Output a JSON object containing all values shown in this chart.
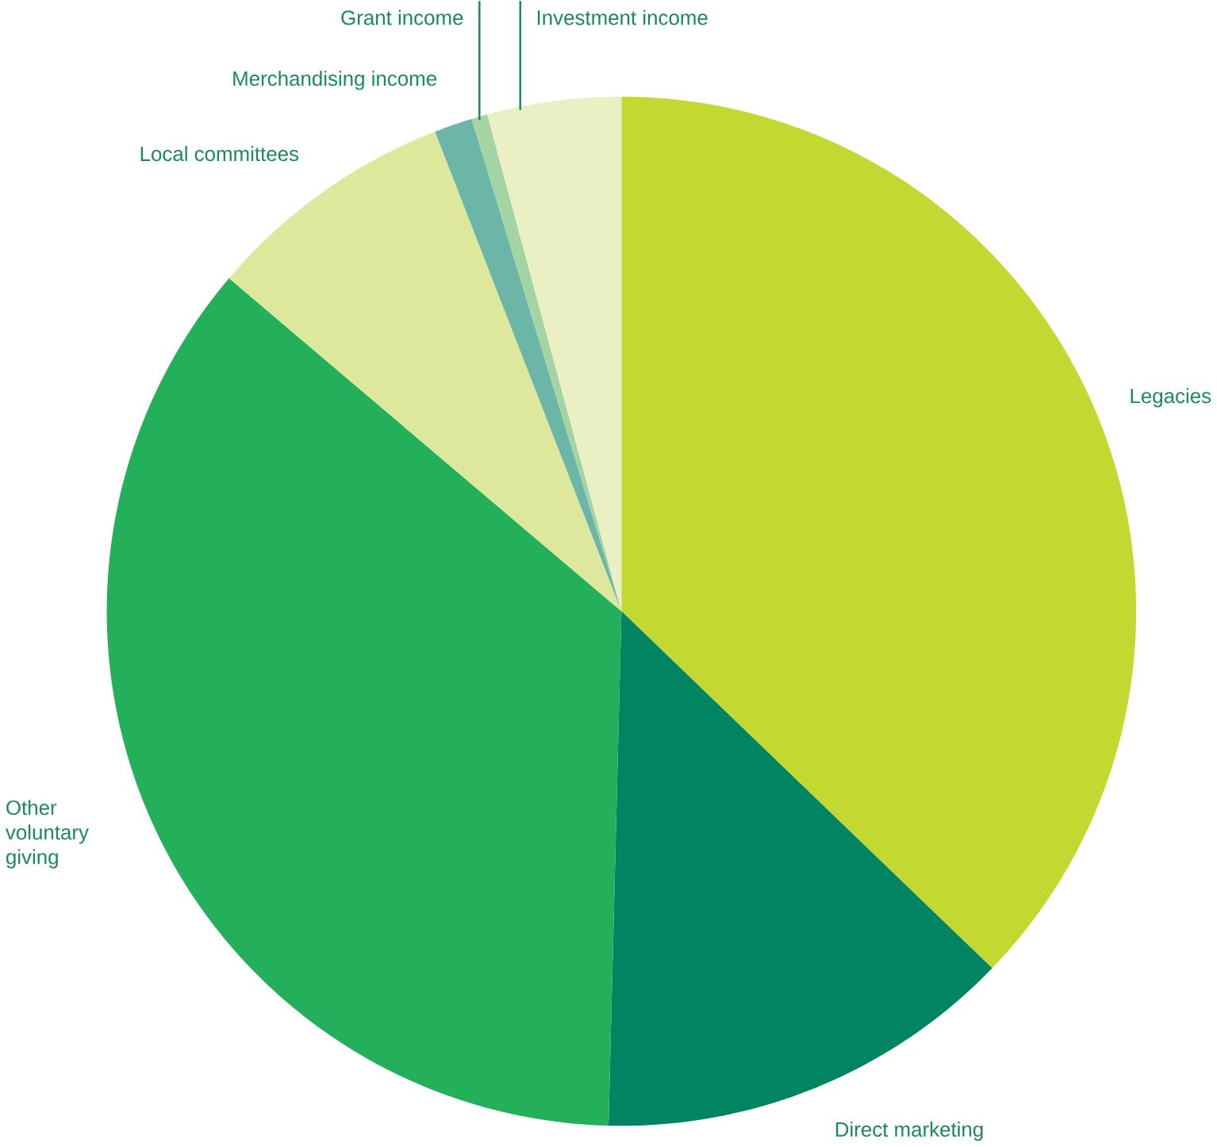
{
  "chart_data": {
    "type": "pie",
    "categories": [
      "Legacies",
      "Direct marketing",
      "Other voluntary giving",
      "Local committees",
      "Merchandising income",
      "Grant income",
      "Investment income"
    ],
    "values": [
      37.2,
      13.2,
      35.8,
      7.9,
      1.2,
      0.5,
      4.2
    ],
    "colors": [
      "#c3d831",
      "#008462",
      "#24b05a",
      "#dde89c",
      "#6bb6a6",
      "#a4d4a4",
      "#eaf0c4"
    ]
  }
}
